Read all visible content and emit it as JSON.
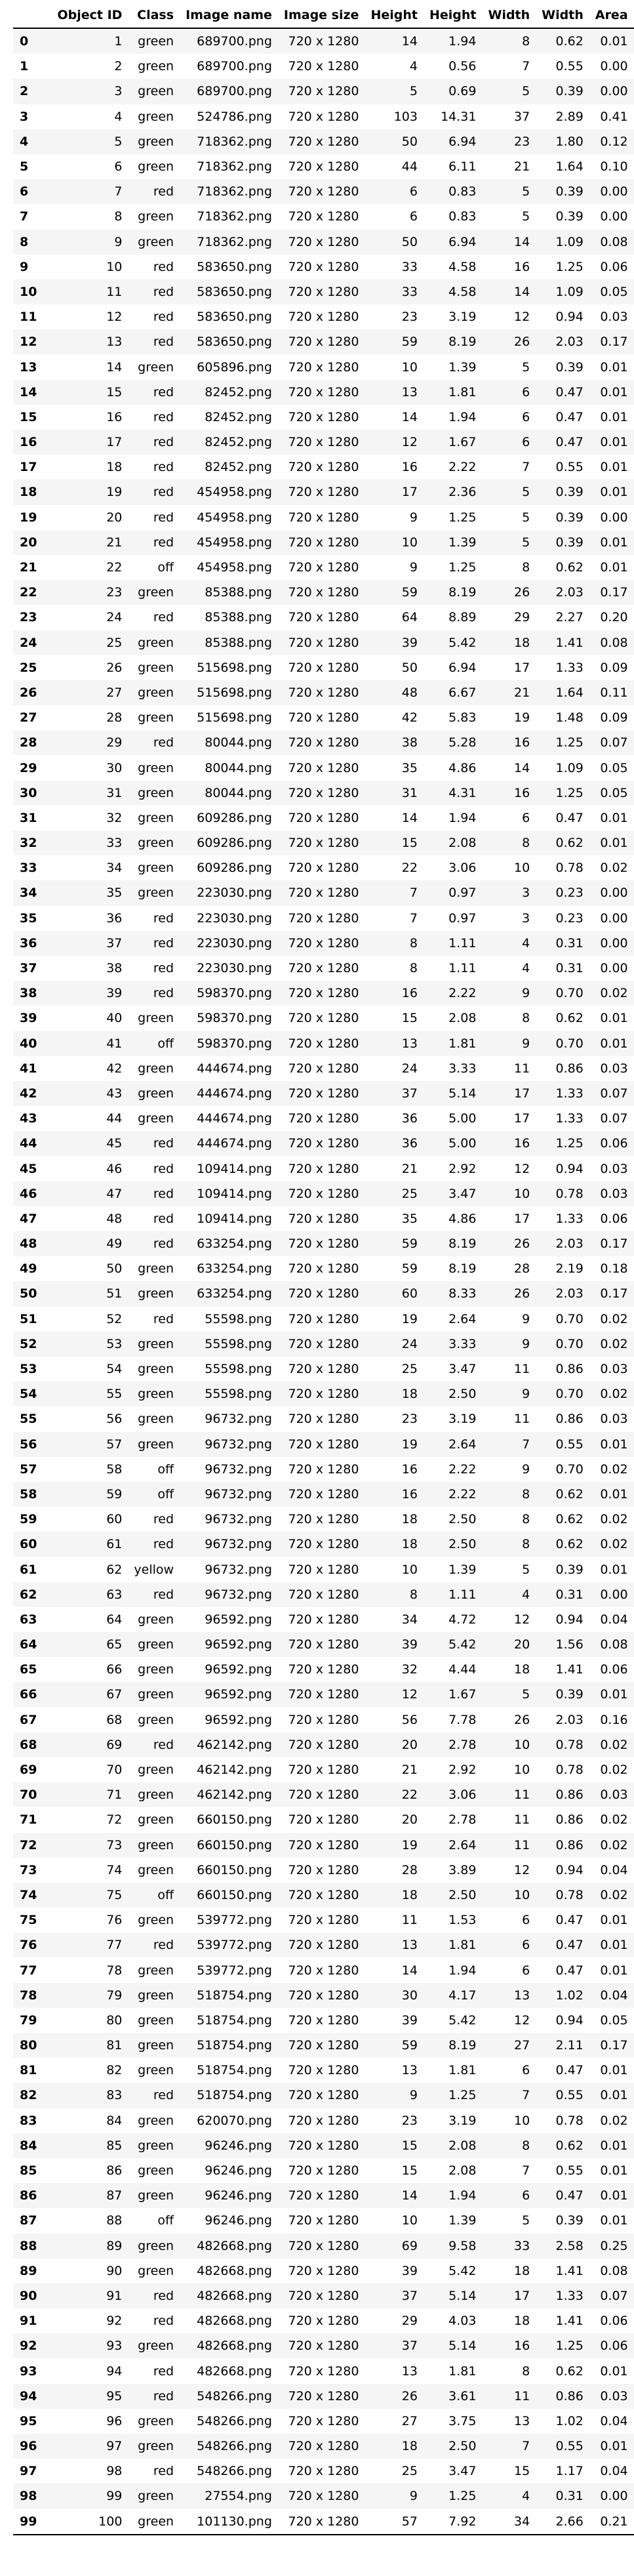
{
  "columns": [
    "",
    "Object ID",
    "Class",
    "Image name",
    "Image size",
    "Height",
    "Height",
    "Width",
    "Width",
    "Area"
  ],
  "rows": [
    [
      "0",
      "1",
      "green",
      "689700.png",
      "720 x 1280",
      "14",
      "1.94",
      "8",
      "0.62",
      "0.01"
    ],
    [
      "1",
      "2",
      "green",
      "689700.png",
      "720 x 1280",
      "4",
      "0.56",
      "7",
      "0.55",
      "0.00"
    ],
    [
      "2",
      "3",
      "green",
      "689700.png",
      "720 x 1280",
      "5",
      "0.69",
      "5",
      "0.39",
      "0.00"
    ],
    [
      "3",
      "4",
      "green",
      "524786.png",
      "720 x 1280",
      "103",
      "14.31",
      "37",
      "2.89",
      "0.41"
    ],
    [
      "4",
      "5",
      "green",
      "718362.png",
      "720 x 1280",
      "50",
      "6.94",
      "23",
      "1.80",
      "0.12"
    ],
    [
      "5",
      "6",
      "green",
      "718362.png",
      "720 x 1280",
      "44",
      "6.11",
      "21",
      "1.64",
      "0.10"
    ],
    [
      "6",
      "7",
      "red",
      "718362.png",
      "720 x 1280",
      "6",
      "0.83",
      "5",
      "0.39",
      "0.00"
    ],
    [
      "7",
      "8",
      "green",
      "718362.png",
      "720 x 1280",
      "6",
      "0.83",
      "5",
      "0.39",
      "0.00"
    ],
    [
      "8",
      "9",
      "green",
      "718362.png",
      "720 x 1280",
      "50",
      "6.94",
      "14",
      "1.09",
      "0.08"
    ],
    [
      "9",
      "10",
      "red",
      "583650.png",
      "720 x 1280",
      "33",
      "4.58",
      "16",
      "1.25",
      "0.06"
    ],
    [
      "10",
      "11",
      "red",
      "583650.png",
      "720 x 1280",
      "33",
      "4.58",
      "14",
      "1.09",
      "0.05"
    ],
    [
      "11",
      "12",
      "red",
      "583650.png",
      "720 x 1280",
      "23",
      "3.19",
      "12",
      "0.94",
      "0.03"
    ],
    [
      "12",
      "13",
      "red",
      "583650.png",
      "720 x 1280",
      "59",
      "8.19",
      "26",
      "2.03",
      "0.17"
    ],
    [
      "13",
      "14",
      "green",
      "605896.png",
      "720 x 1280",
      "10",
      "1.39",
      "5",
      "0.39",
      "0.01"
    ],
    [
      "14",
      "15",
      "red",
      "82452.png",
      "720 x 1280",
      "13",
      "1.81",
      "6",
      "0.47",
      "0.01"
    ],
    [
      "15",
      "16",
      "red",
      "82452.png",
      "720 x 1280",
      "14",
      "1.94",
      "6",
      "0.47",
      "0.01"
    ],
    [
      "16",
      "17",
      "red",
      "82452.png",
      "720 x 1280",
      "12",
      "1.67",
      "6",
      "0.47",
      "0.01"
    ],
    [
      "17",
      "18",
      "red",
      "82452.png",
      "720 x 1280",
      "16",
      "2.22",
      "7",
      "0.55",
      "0.01"
    ],
    [
      "18",
      "19",
      "red",
      "454958.png",
      "720 x 1280",
      "17",
      "2.36",
      "5",
      "0.39",
      "0.01"
    ],
    [
      "19",
      "20",
      "red",
      "454958.png",
      "720 x 1280",
      "9",
      "1.25",
      "5",
      "0.39",
      "0.00"
    ],
    [
      "20",
      "21",
      "red",
      "454958.png",
      "720 x 1280",
      "10",
      "1.39",
      "5",
      "0.39",
      "0.01"
    ],
    [
      "21",
      "22",
      "off",
      "454958.png",
      "720 x 1280",
      "9",
      "1.25",
      "8",
      "0.62",
      "0.01"
    ],
    [
      "22",
      "23",
      "green",
      "85388.png",
      "720 x 1280",
      "59",
      "8.19",
      "26",
      "2.03",
      "0.17"
    ],
    [
      "23",
      "24",
      "red",
      "85388.png",
      "720 x 1280",
      "64",
      "8.89",
      "29",
      "2.27",
      "0.20"
    ],
    [
      "24",
      "25",
      "green",
      "85388.png",
      "720 x 1280",
      "39",
      "5.42",
      "18",
      "1.41",
      "0.08"
    ],
    [
      "25",
      "26",
      "green",
      "515698.png",
      "720 x 1280",
      "50",
      "6.94",
      "17",
      "1.33",
      "0.09"
    ],
    [
      "26",
      "27",
      "green",
      "515698.png",
      "720 x 1280",
      "48",
      "6.67",
      "21",
      "1.64",
      "0.11"
    ],
    [
      "27",
      "28",
      "green",
      "515698.png",
      "720 x 1280",
      "42",
      "5.83",
      "19",
      "1.48",
      "0.09"
    ],
    [
      "28",
      "29",
      "red",
      "80044.png",
      "720 x 1280",
      "38",
      "5.28",
      "16",
      "1.25",
      "0.07"
    ],
    [
      "29",
      "30",
      "green",
      "80044.png",
      "720 x 1280",
      "35",
      "4.86",
      "14",
      "1.09",
      "0.05"
    ],
    [
      "30",
      "31",
      "green",
      "80044.png",
      "720 x 1280",
      "31",
      "4.31",
      "16",
      "1.25",
      "0.05"
    ],
    [
      "31",
      "32",
      "green",
      "609286.png",
      "720 x 1280",
      "14",
      "1.94",
      "6",
      "0.47",
      "0.01"
    ],
    [
      "32",
      "33",
      "green",
      "609286.png",
      "720 x 1280",
      "15",
      "2.08",
      "8",
      "0.62",
      "0.01"
    ],
    [
      "33",
      "34",
      "green",
      "609286.png",
      "720 x 1280",
      "22",
      "3.06",
      "10",
      "0.78",
      "0.02"
    ],
    [
      "34",
      "35",
      "green",
      "223030.png",
      "720 x 1280",
      "7",
      "0.97",
      "3",
      "0.23",
      "0.00"
    ],
    [
      "35",
      "36",
      "red",
      "223030.png",
      "720 x 1280",
      "7",
      "0.97",
      "3",
      "0.23",
      "0.00"
    ],
    [
      "36",
      "37",
      "red",
      "223030.png",
      "720 x 1280",
      "8",
      "1.11",
      "4",
      "0.31",
      "0.00"
    ],
    [
      "37",
      "38",
      "red",
      "223030.png",
      "720 x 1280",
      "8",
      "1.11",
      "4",
      "0.31",
      "0.00"
    ],
    [
      "38",
      "39",
      "red",
      "598370.png",
      "720 x 1280",
      "16",
      "2.22",
      "9",
      "0.70",
      "0.02"
    ],
    [
      "39",
      "40",
      "green",
      "598370.png",
      "720 x 1280",
      "15",
      "2.08",
      "8",
      "0.62",
      "0.01"
    ],
    [
      "40",
      "41",
      "off",
      "598370.png",
      "720 x 1280",
      "13",
      "1.81",
      "9",
      "0.70",
      "0.01"
    ],
    [
      "41",
      "42",
      "green",
      "444674.png",
      "720 x 1280",
      "24",
      "3.33",
      "11",
      "0.86",
      "0.03"
    ],
    [
      "42",
      "43",
      "green",
      "444674.png",
      "720 x 1280",
      "37",
      "5.14",
      "17",
      "1.33",
      "0.07"
    ],
    [
      "43",
      "44",
      "green",
      "444674.png",
      "720 x 1280",
      "36",
      "5.00",
      "17",
      "1.33",
      "0.07"
    ],
    [
      "44",
      "45",
      "red",
      "444674.png",
      "720 x 1280",
      "36",
      "5.00",
      "16",
      "1.25",
      "0.06"
    ],
    [
      "45",
      "46",
      "red",
      "109414.png",
      "720 x 1280",
      "21",
      "2.92",
      "12",
      "0.94",
      "0.03"
    ],
    [
      "46",
      "47",
      "red",
      "109414.png",
      "720 x 1280",
      "25",
      "3.47",
      "10",
      "0.78",
      "0.03"
    ],
    [
      "47",
      "48",
      "red",
      "109414.png",
      "720 x 1280",
      "35",
      "4.86",
      "17",
      "1.33",
      "0.06"
    ],
    [
      "48",
      "49",
      "red",
      "633254.png",
      "720 x 1280",
      "59",
      "8.19",
      "26",
      "2.03",
      "0.17"
    ],
    [
      "49",
      "50",
      "green",
      "633254.png",
      "720 x 1280",
      "59",
      "8.19",
      "28",
      "2.19",
      "0.18"
    ],
    [
      "50",
      "51",
      "green",
      "633254.png",
      "720 x 1280",
      "60",
      "8.33",
      "26",
      "2.03",
      "0.17"
    ],
    [
      "51",
      "52",
      "red",
      "55598.png",
      "720 x 1280",
      "19",
      "2.64",
      "9",
      "0.70",
      "0.02"
    ],
    [
      "52",
      "53",
      "green",
      "55598.png",
      "720 x 1280",
      "24",
      "3.33",
      "9",
      "0.70",
      "0.02"
    ],
    [
      "53",
      "54",
      "green",
      "55598.png",
      "720 x 1280",
      "25",
      "3.47",
      "11",
      "0.86",
      "0.03"
    ],
    [
      "54",
      "55",
      "green",
      "55598.png",
      "720 x 1280",
      "18",
      "2.50",
      "9",
      "0.70",
      "0.02"
    ],
    [
      "55",
      "56",
      "green",
      "96732.png",
      "720 x 1280",
      "23",
      "3.19",
      "11",
      "0.86",
      "0.03"
    ],
    [
      "56",
      "57",
      "green",
      "96732.png",
      "720 x 1280",
      "19",
      "2.64",
      "7",
      "0.55",
      "0.01"
    ],
    [
      "57",
      "58",
      "off",
      "96732.png",
      "720 x 1280",
      "16",
      "2.22",
      "9",
      "0.70",
      "0.02"
    ],
    [
      "58",
      "59",
      "off",
      "96732.png",
      "720 x 1280",
      "16",
      "2.22",
      "8",
      "0.62",
      "0.01"
    ],
    [
      "59",
      "60",
      "red",
      "96732.png",
      "720 x 1280",
      "18",
      "2.50",
      "8",
      "0.62",
      "0.02"
    ],
    [
      "60",
      "61",
      "red",
      "96732.png",
      "720 x 1280",
      "18",
      "2.50",
      "8",
      "0.62",
      "0.02"
    ],
    [
      "61",
      "62",
      "yellow",
      "96732.png",
      "720 x 1280",
      "10",
      "1.39",
      "5",
      "0.39",
      "0.01"
    ],
    [
      "62",
      "63",
      "red",
      "96732.png",
      "720 x 1280",
      "8",
      "1.11",
      "4",
      "0.31",
      "0.00"
    ],
    [
      "63",
      "64",
      "green",
      "96592.png",
      "720 x 1280",
      "34",
      "4.72",
      "12",
      "0.94",
      "0.04"
    ],
    [
      "64",
      "65",
      "green",
      "96592.png",
      "720 x 1280",
      "39",
      "5.42",
      "20",
      "1.56",
      "0.08"
    ],
    [
      "65",
      "66",
      "green",
      "96592.png",
      "720 x 1280",
      "32",
      "4.44",
      "18",
      "1.41",
      "0.06"
    ],
    [
      "66",
      "67",
      "green",
      "96592.png",
      "720 x 1280",
      "12",
      "1.67",
      "5",
      "0.39",
      "0.01"
    ],
    [
      "67",
      "68",
      "green",
      "96592.png",
      "720 x 1280",
      "56",
      "7.78",
      "26",
      "2.03",
      "0.16"
    ],
    [
      "68",
      "69",
      "red",
      "462142.png",
      "720 x 1280",
      "20",
      "2.78",
      "10",
      "0.78",
      "0.02"
    ],
    [
      "69",
      "70",
      "green",
      "462142.png",
      "720 x 1280",
      "21",
      "2.92",
      "10",
      "0.78",
      "0.02"
    ],
    [
      "70",
      "71",
      "green",
      "462142.png",
      "720 x 1280",
      "22",
      "3.06",
      "11",
      "0.86",
      "0.03"
    ],
    [
      "71",
      "72",
      "green",
      "660150.png",
      "720 x 1280",
      "20",
      "2.78",
      "11",
      "0.86",
      "0.02"
    ],
    [
      "72",
      "73",
      "green",
      "660150.png",
      "720 x 1280",
      "19",
      "2.64",
      "11",
      "0.86",
      "0.02"
    ],
    [
      "73",
      "74",
      "green",
      "660150.png",
      "720 x 1280",
      "28",
      "3.89",
      "12",
      "0.94",
      "0.04"
    ],
    [
      "74",
      "75",
      "off",
      "660150.png",
      "720 x 1280",
      "18",
      "2.50",
      "10",
      "0.78",
      "0.02"
    ],
    [
      "75",
      "76",
      "green",
      "539772.png",
      "720 x 1280",
      "11",
      "1.53",
      "6",
      "0.47",
      "0.01"
    ],
    [
      "76",
      "77",
      "red",
      "539772.png",
      "720 x 1280",
      "13",
      "1.81",
      "6",
      "0.47",
      "0.01"
    ],
    [
      "77",
      "78",
      "green",
      "539772.png",
      "720 x 1280",
      "14",
      "1.94",
      "6",
      "0.47",
      "0.01"
    ],
    [
      "78",
      "79",
      "green",
      "518754.png",
      "720 x 1280",
      "30",
      "4.17",
      "13",
      "1.02",
      "0.04"
    ],
    [
      "79",
      "80",
      "green",
      "518754.png",
      "720 x 1280",
      "39",
      "5.42",
      "12",
      "0.94",
      "0.05"
    ],
    [
      "80",
      "81",
      "green",
      "518754.png",
      "720 x 1280",
      "59",
      "8.19",
      "27",
      "2.11",
      "0.17"
    ],
    [
      "81",
      "82",
      "green",
      "518754.png",
      "720 x 1280",
      "13",
      "1.81",
      "6",
      "0.47",
      "0.01"
    ],
    [
      "82",
      "83",
      "red",
      "518754.png",
      "720 x 1280",
      "9",
      "1.25",
      "7",
      "0.55",
      "0.01"
    ],
    [
      "83",
      "84",
      "green",
      "620070.png",
      "720 x 1280",
      "23",
      "3.19",
      "10",
      "0.78",
      "0.02"
    ],
    [
      "84",
      "85",
      "green",
      "96246.png",
      "720 x 1280",
      "15",
      "2.08",
      "8",
      "0.62",
      "0.01"
    ],
    [
      "85",
      "86",
      "green",
      "96246.png",
      "720 x 1280",
      "15",
      "2.08",
      "7",
      "0.55",
      "0.01"
    ],
    [
      "86",
      "87",
      "green",
      "96246.png",
      "720 x 1280",
      "14",
      "1.94",
      "6",
      "0.47",
      "0.01"
    ],
    [
      "87",
      "88",
      "off",
      "96246.png",
      "720 x 1280",
      "10",
      "1.39",
      "5",
      "0.39",
      "0.01"
    ],
    [
      "88",
      "89",
      "green",
      "482668.png",
      "720 x 1280",
      "69",
      "9.58",
      "33",
      "2.58",
      "0.25"
    ],
    [
      "89",
      "90",
      "green",
      "482668.png",
      "720 x 1280",
      "39",
      "5.42",
      "18",
      "1.41",
      "0.08"
    ],
    [
      "90",
      "91",
      "red",
      "482668.png",
      "720 x 1280",
      "37",
      "5.14",
      "17",
      "1.33",
      "0.07"
    ],
    [
      "91",
      "92",
      "red",
      "482668.png",
      "720 x 1280",
      "29",
      "4.03",
      "18",
      "1.41",
      "0.06"
    ],
    [
      "92",
      "93",
      "green",
      "482668.png",
      "720 x 1280",
      "37",
      "5.14",
      "16",
      "1.25",
      "0.06"
    ],
    [
      "93",
      "94",
      "red",
      "482668.png",
      "720 x 1280",
      "13",
      "1.81",
      "8",
      "0.62",
      "0.01"
    ],
    [
      "94",
      "95",
      "red",
      "548266.png",
      "720 x 1280",
      "26",
      "3.61",
      "11",
      "0.86",
      "0.03"
    ],
    [
      "95",
      "96",
      "green",
      "548266.png",
      "720 x 1280",
      "27",
      "3.75",
      "13",
      "1.02",
      "0.04"
    ],
    [
      "96",
      "97",
      "green",
      "548266.png",
      "720 x 1280",
      "18",
      "2.50",
      "7",
      "0.55",
      "0.01"
    ],
    [
      "97",
      "98",
      "red",
      "548266.png",
      "720 x 1280",
      "25",
      "3.47",
      "15",
      "1.17",
      "0.04"
    ],
    [
      "98",
      "99",
      "green",
      "27554.png",
      "720 x 1280",
      "9",
      "1.25",
      "4",
      "0.31",
      "0.00"
    ],
    [
      "99",
      "100",
      "green",
      "101130.png",
      "720 x 1280",
      "57",
      "7.92",
      "34",
      "2.66",
      "0.21"
    ]
  ]
}
